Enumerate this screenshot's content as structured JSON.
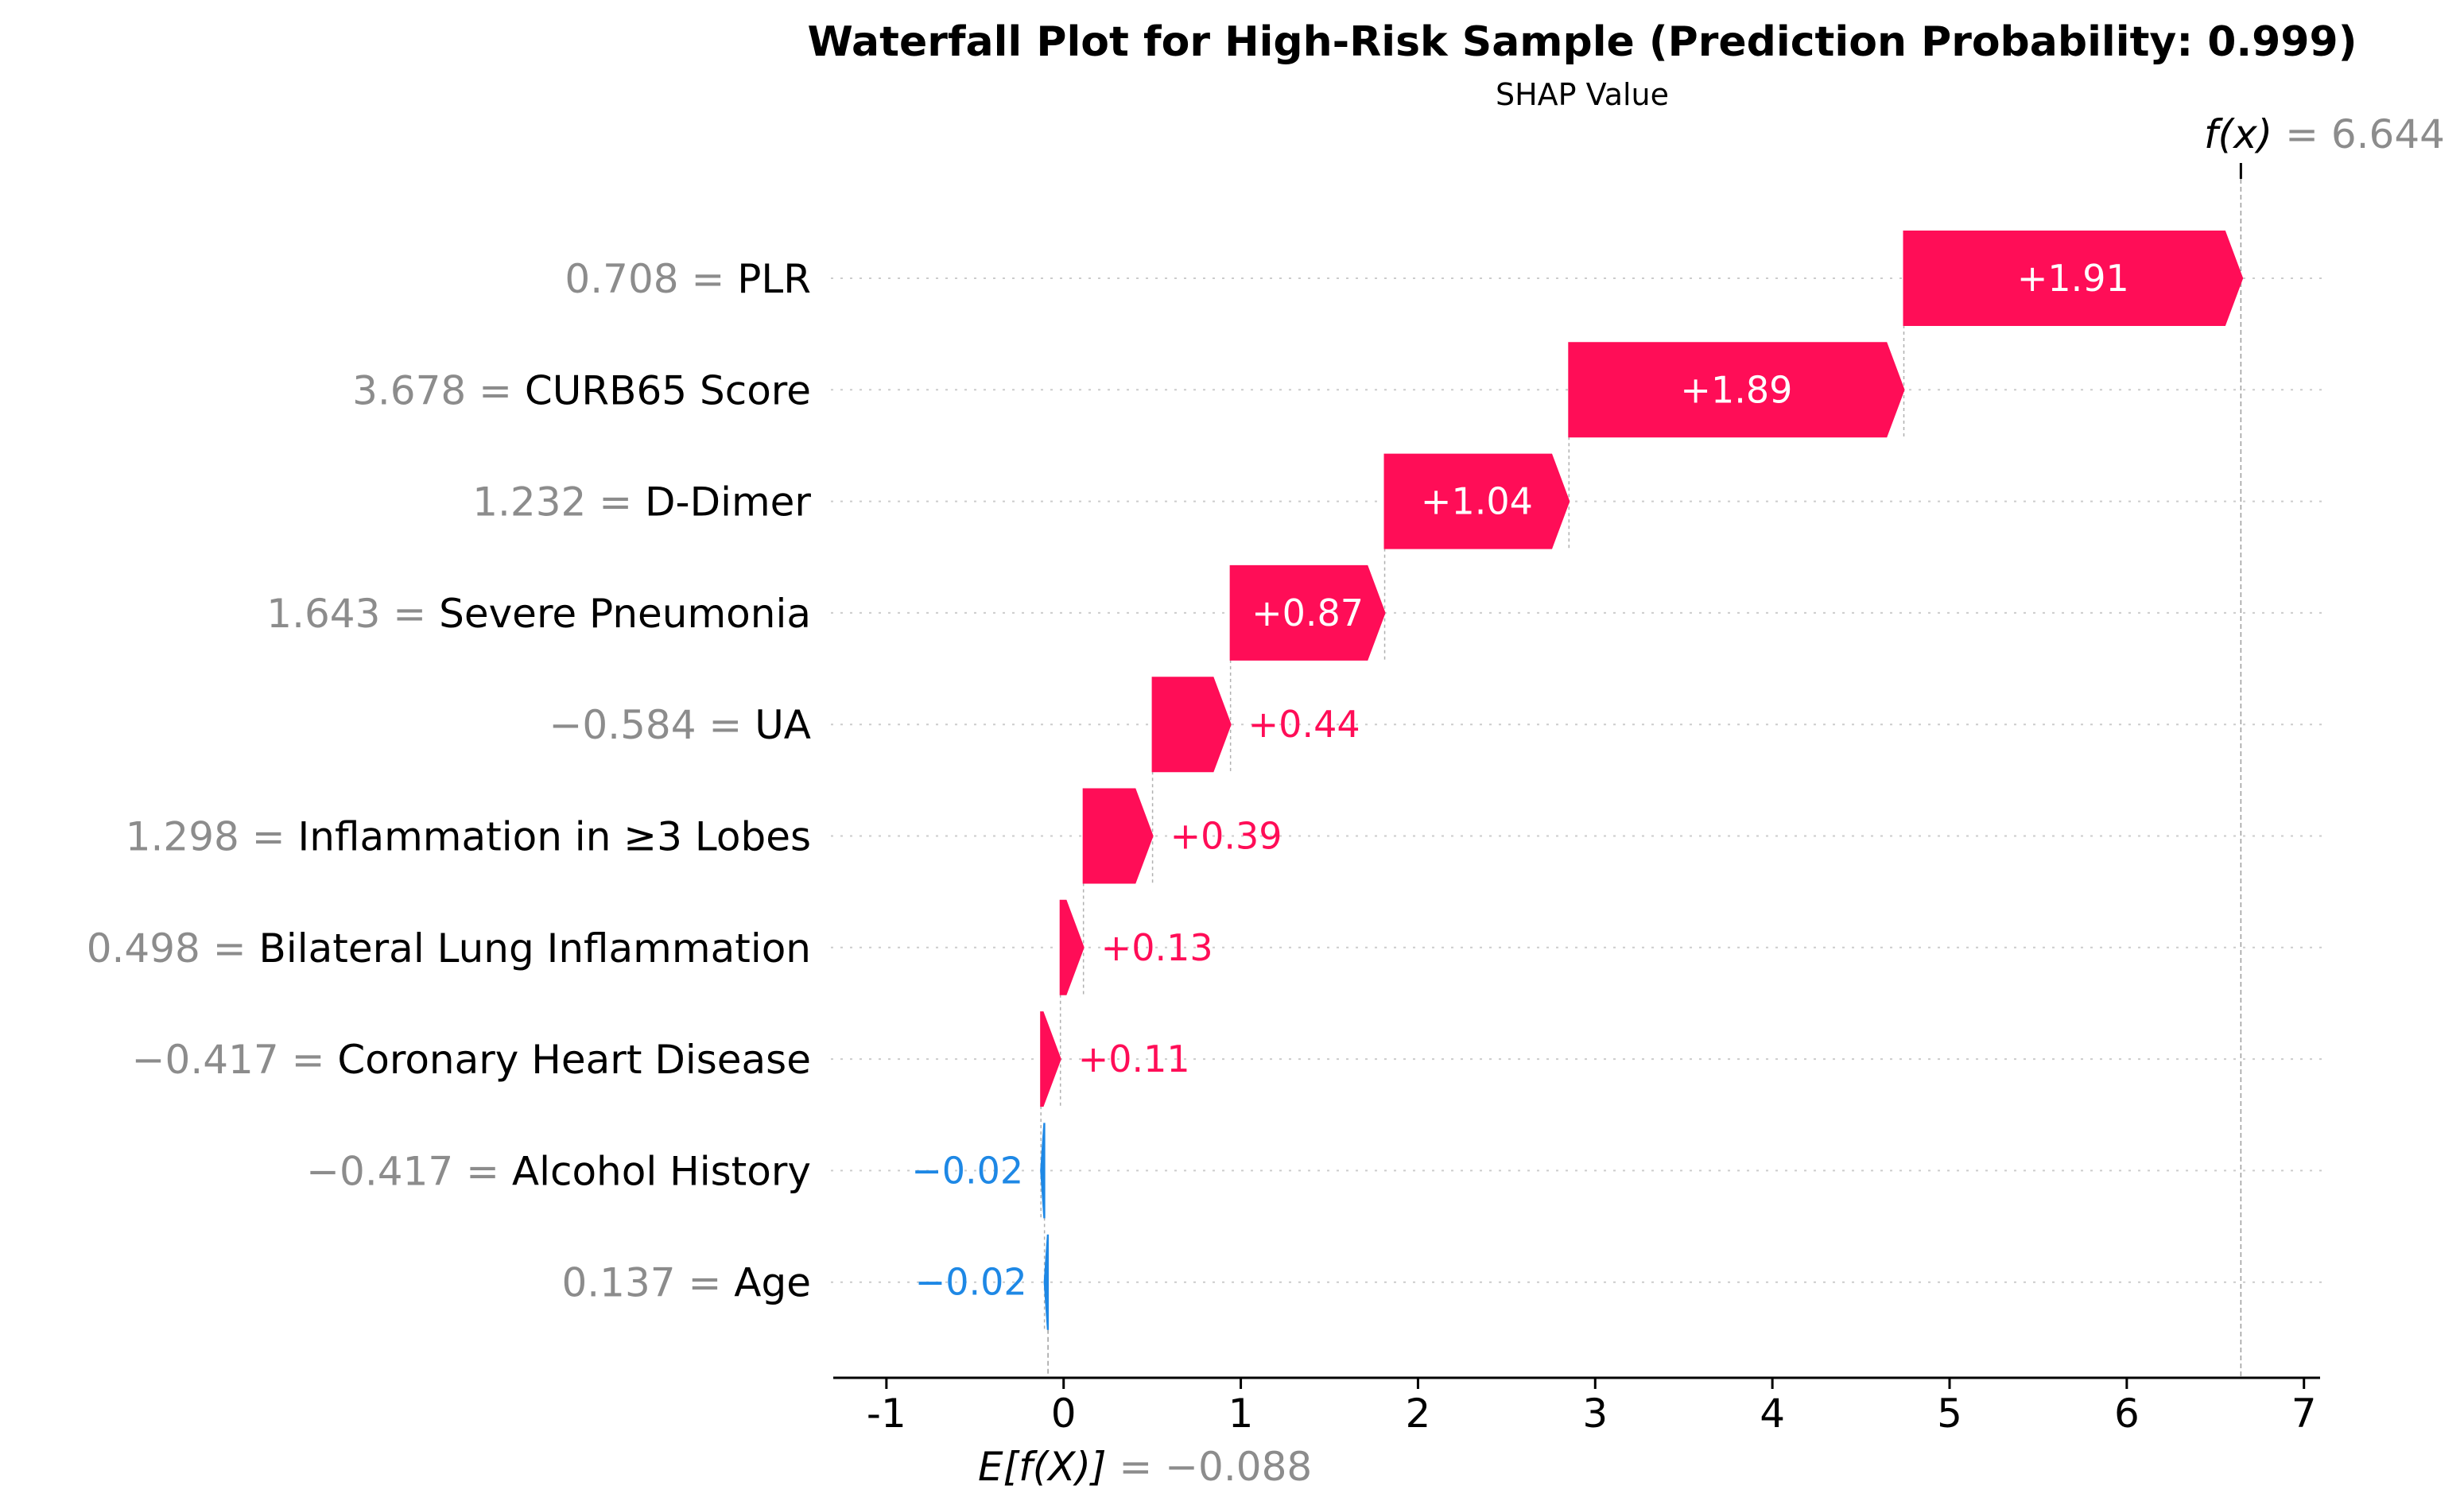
{
  "chart_data": {
    "type": "waterfall",
    "title": "Waterfall Plot for High-Risk Sample (Prediction Probability: 0.999)",
    "xlabel": "SHAP Value",
    "base_value": -0.088,
    "base_label": "E[f(X)]",
    "base_value_text": "= −0.088",
    "final_value": 6.644,
    "final_label": "f(x)",
    "final_value_text": "= 6.644",
    "xlim": [
      -1.3,
      7.1
    ],
    "xticks": [
      -1,
      0,
      1,
      2,
      3,
      4,
      5,
      6,
      7
    ],
    "xtick_labels": [
      "-1",
      "0",
      "1",
      "2",
      "3",
      "4",
      "5",
      "6",
      "7"
    ],
    "grid": "horizontal dotted",
    "features": [
      {
        "name": "PLR",
        "value_text": "0.708 =",
        "shap": 1.91,
        "label": "+1.91"
      },
      {
        "name": "CURB65 Score",
        "value_text": "3.678 =",
        "shap": 1.89,
        "label": "+1.89"
      },
      {
        "name": "D-Dimer",
        "value_text": "1.232 =",
        "shap": 1.04,
        "label": "+1.04"
      },
      {
        "name": "Severe Pneumonia",
        "value_text": "1.643 =",
        "shap": 0.87,
        "label": "+0.87"
      },
      {
        "name": "UA",
        "value_text": "−0.584 =",
        "shap": 0.44,
        "label": "+0.44"
      },
      {
        "name": "Inflammation in ≥3 Lobes",
        "value_text": "1.298 =",
        "shap": 0.39,
        "label": "+0.39"
      },
      {
        "name": "Bilateral Lung Inflammation",
        "value_text": "0.498 =",
        "shap": 0.13,
        "label": "+0.13"
      },
      {
        "name": "Coronary Heart Disease",
        "value_text": "−0.417 =",
        "shap": 0.11,
        "label": "+0.11"
      },
      {
        "name": "Alcohol History",
        "value_text": "−0.417 =",
        "shap": -0.02,
        "label": "−0.02"
      },
      {
        "name": "Age",
        "value_text": "0.137 =",
        "shap": -0.02,
        "label": "−0.02"
      }
    ],
    "colors": {
      "positive": "#ff0d57",
      "negative": "#1e88e5",
      "value_text": "#8c8c8c",
      "axis": "#000000",
      "grid": "#cccccc"
    }
  }
}
